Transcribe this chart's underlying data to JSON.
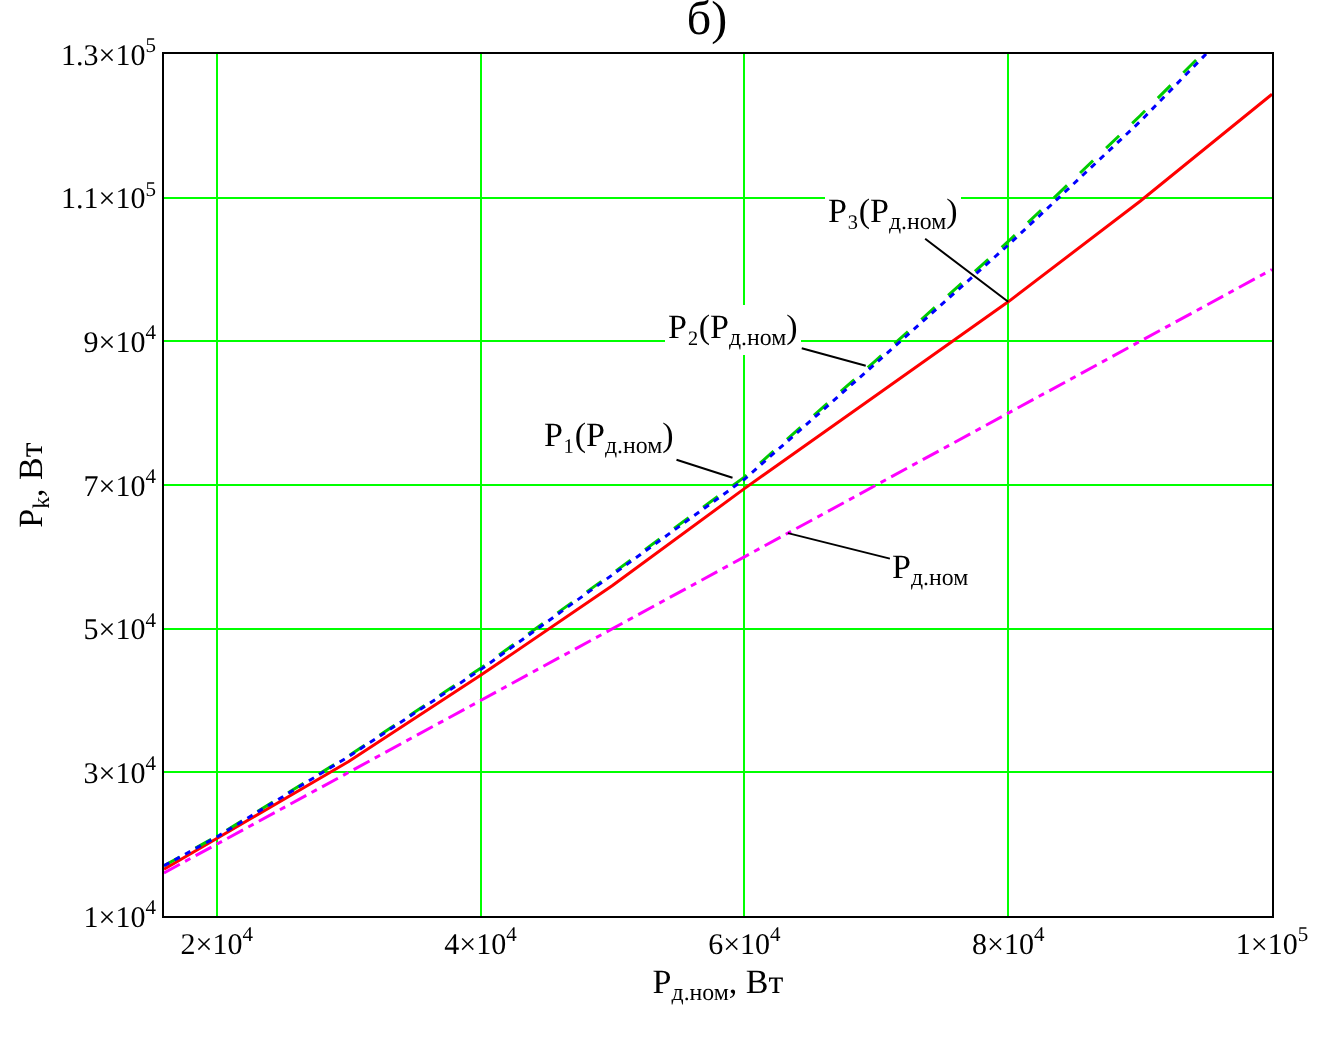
{
  "chart_data": {
    "type": "line",
    "title": "б)",
    "xlabel": "P$_{д.ном}$, Вт",
    "ylabel": "P$_{k}$, Вт",
    "xlim": [
      16000,
      100000
    ],
    "ylim": [
      10000,
      130000
    ],
    "xticks": [
      {
        "value": 20000,
        "label": "2×10$^{4}$"
      },
      {
        "value": 40000,
        "label": "4×10$^{4}$"
      },
      {
        "value": 60000,
        "label": "6×10$^{4}$"
      },
      {
        "value": 80000,
        "label": "8×10$^{4}$"
      },
      {
        "value": 100000,
        "label": "1×10$^{5}$"
      }
    ],
    "yticks": [
      {
        "value": 10000,
        "label": "1×10$^{4}$"
      },
      {
        "value": 30000,
        "label": "3×10$^{4}$"
      },
      {
        "value": 50000,
        "label": "5×10$^{4}$"
      },
      {
        "value": 70000,
        "label": "7×10$^{4}$"
      },
      {
        "value": 90000,
        "label": "9×10$^{4}$"
      },
      {
        "value": 110000,
        "label": "1.1×10$^{5}$"
      },
      {
        "value": 130000,
        "label": "1.3×10$^{5}$"
      }
    ],
    "grid": true,
    "marker": "none",
    "series": [
      {
        "color": "#ff0000",
        "line_style": "solid",
        "x": [
          16000,
          20000,
          30000,
          40000,
          50000,
          60000,
          70000,
          80000,
          90000,
          100000
        ],
        "values": [
          16500,
          20800,
          31500,
          43500,
          56000,
          69500,
          82500,
          95500,
          109500,
          124400
        ]
      },
      {
        "color": "#00cc00",
        "line_style": "dashed",
        "x": [
          16000,
          20000,
          30000,
          40000,
          50000,
          60000,
          70000,
          80000,
          90000,
          94700
        ],
        "values": [
          17000,
          21100,
          32300,
          44500,
          57700,
          71100,
          87400,
          103900,
          121400,
          130000
        ]
      },
      {
        "color": "#0000ff",
        "line_style": "dotted",
        "x": [
          16000,
          20000,
          30000,
          40000,
          50000,
          60000,
          70000,
          80000,
          90000,
          95000
        ],
        "values": [
          17000,
          21000,
          32200,
          44300,
          57500,
          70800,
          87000,
          103400,
          120600,
          130000
        ]
      },
      {
        "color": "#ff00ff",
        "line_style": "dashdot",
        "x": [
          16000,
          40000,
          60000,
          80000,
          100000
        ],
        "values": [
          16000,
          40000,
          60000,
          80000,
          100000
        ]
      }
    ],
    "annotations": [
      {
        "text": "P₁(P$_{д.ном}$)",
        "x": 59100,
        "y": 71000
      },
      {
        "text": "P₂(P$_{д.ном}$)",
        "x": 69200,
        "y": 86600
      },
      {
        "text": "P₃(P$_{д.ном}$)",
        "x": 80000,
        "y": 95500
      },
      {
        "text": "P$_{д.ном}$",
        "x": 63300,
        "y": 63300
      }
    ]
  }
}
